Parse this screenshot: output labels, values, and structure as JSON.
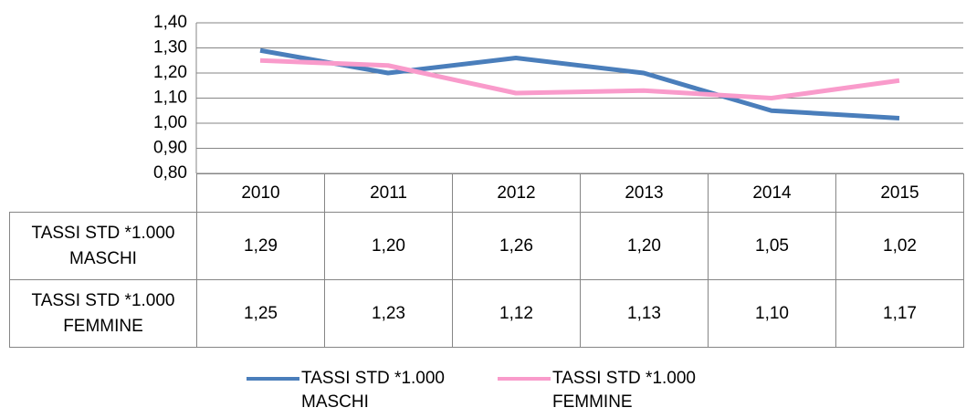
{
  "chart_data": {
    "type": "line",
    "categories": [
      "2010",
      "2011",
      "2012",
      "2013",
      "2014",
      "2015"
    ],
    "series": [
      {
        "name": "TASSI STD *1.000 MASCHI",
        "color": "#4a7ebb",
        "values": [
          1.29,
          1.2,
          1.26,
          1.2,
          1.05,
          1.02
        ],
        "value_labels": [
          "1,29",
          "1,20",
          "1,26",
          "1,20",
          "1,05",
          "1,02"
        ]
      },
      {
        "name": "TASSI STD *1.000 FEMMINE",
        "color": "#f99bcb",
        "values": [
          1.25,
          1.23,
          1.12,
          1.13,
          1.1,
          1.17
        ],
        "value_labels": [
          "1,25",
          "1,23",
          "1,12",
          "1,13",
          "1,10",
          "1,17"
        ]
      }
    ],
    "ylim": [
      0.8,
      1.4
    ],
    "yticks": [
      {
        "value": 0.8,
        "label": "0,80"
      },
      {
        "value": 0.9,
        "label": "0,90"
      },
      {
        "value": 1.0,
        "label": "1,00"
      },
      {
        "value": 1.1,
        "label": "1,10"
      },
      {
        "value": 1.2,
        "label": "1,20"
      },
      {
        "value": 1.3,
        "label": "1,30"
      },
      {
        "value": 1.4,
        "label": "1,40"
      }
    ],
    "grid": true,
    "legend": "bottom"
  }
}
